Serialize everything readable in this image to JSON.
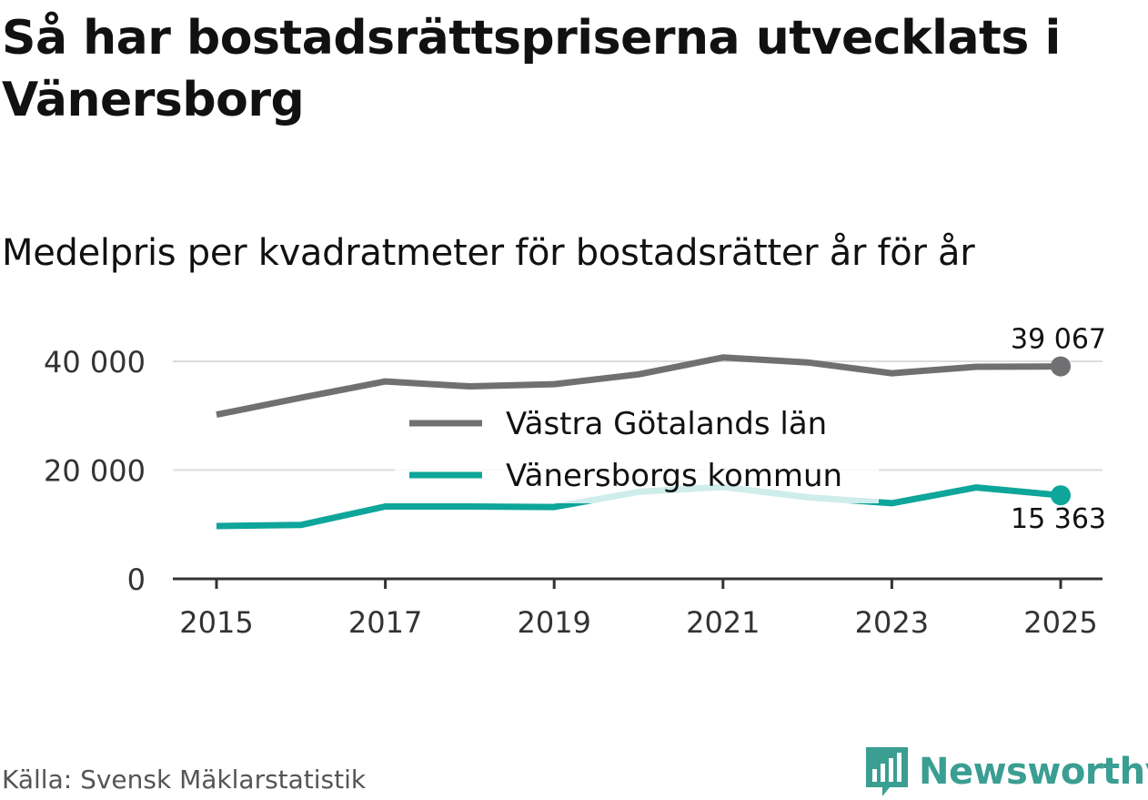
{
  "title": "Så har bostadsrättspriserna utvecklats i Vänersborg",
  "subtitle": "Medelpris per kvadratmeter för bostadsrätter år för år",
  "source": "Källa: Svensk Mäklarstatistik",
  "brand": {
    "name": "Newsworthy",
    "icon": "newsworthy-logo-icon",
    "color": "#3a9e92"
  },
  "chart_data": {
    "type": "line",
    "x": [
      2015,
      2016,
      2017,
      2018,
      2019,
      2020,
      2021,
      2022,
      2023,
      2024,
      2025
    ],
    "x_ticks": [
      "2015",
      "2017",
      "2019",
      "2021",
      "2023",
      "2025"
    ],
    "y_ticks": [
      "0",
      "20 000",
      "40 000"
    ],
    "ylim": [
      0,
      42000
    ],
    "grid": true,
    "series": [
      {
        "name": "Västra Götalands län",
        "color": "#707072",
        "values": [
          30200,
          33300,
          36300,
          35400,
          35800,
          37600,
          40700,
          39800,
          37800,
          39000,
          39067
        ],
        "end_label": "39 067"
      },
      {
        "name": "Vänersborgs kommun",
        "color": "#0ea59a",
        "values": [
          9700,
          9900,
          13300,
          13300,
          13200,
          16000,
          16900,
          15000,
          13900,
          16800,
          15363
        ],
        "end_label": "15 363"
      }
    ],
    "legend_position": "center"
  }
}
